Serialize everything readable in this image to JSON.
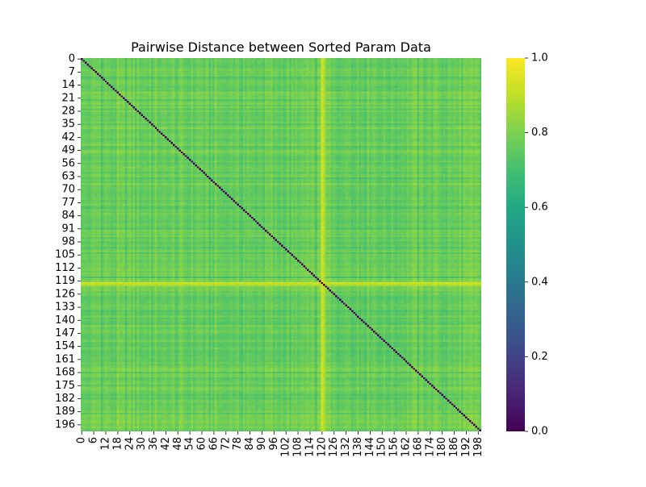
{
  "chart_data": {
    "type": "heatmap",
    "title": "Pairwise Distance between Sorted Param Data",
    "xlabel": "",
    "ylabel": "",
    "n": 200,
    "x_tick_labels": [
      "0",
      "6",
      "12",
      "18",
      "24",
      "30",
      "36",
      "42",
      "48",
      "54",
      "60",
      "66",
      "72",
      "78",
      "84",
      "90",
      "96",
      "102",
      "108",
      "114",
      "120",
      "126",
      "132",
      "138",
      "144",
      "150",
      "156",
      "162",
      "168",
      "174",
      "180",
      "186",
      "192",
      "198"
    ],
    "y_tick_labels": [
      "0",
      "7",
      "14",
      "21",
      "28",
      "35",
      "42",
      "49",
      "56",
      "63",
      "70",
      "77",
      "84",
      "91",
      "98",
      "105",
      "112",
      "119",
      "126",
      "133",
      "140",
      "147",
      "154",
      "161",
      "168",
      "175",
      "182",
      "189",
      "196"
    ],
    "colormap": "viridis",
    "colorbar": {
      "vmin": 0.0,
      "vmax": 1.0,
      "tick_labels": [
        "0.0",
        "0.2",
        "0.4",
        "0.6",
        "0.8",
        "1.0"
      ]
    },
    "diagonal_value": 0.0,
    "typical_value": 0.75,
    "value_range_offdiag": [
      0.6,
      0.95
    ],
    "bright_indices": [
      {
        "index": 120,
        "value": 0.93
      },
      {
        "index": 121,
        "value": 0.9
      }
    ],
    "grid": false,
    "legend": "colorbar-right"
  }
}
